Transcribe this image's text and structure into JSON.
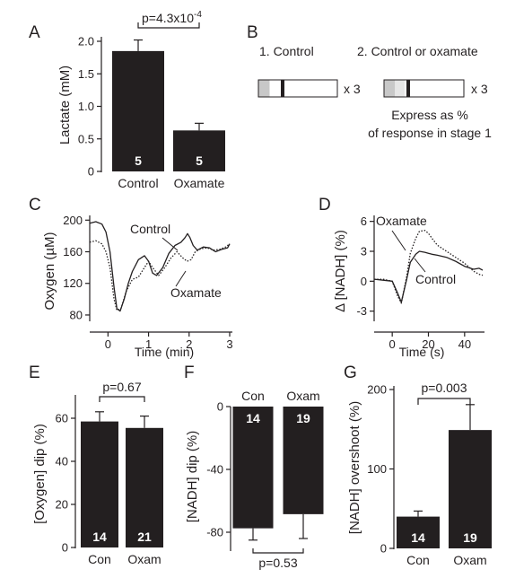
{
  "chart_data": [
    {
      "panel": "A",
      "type": "bar",
      "ylabel": "Lactate (mM)",
      "ylim": [
        0,
        2.2
      ],
      "yticks": [
        "0",
        "0.5",
        "1.0",
        "1.5",
        "2.0"
      ],
      "categories": [
        "Control",
        "Oxamate"
      ],
      "values": [
        1.85,
        0.63
      ],
      "errors": [
        0.17,
        0.11
      ],
      "n": [
        "5",
        "5"
      ],
      "sig_label": "p=4.3x10",
      "sig_exponent": "-4"
    },
    {
      "panel": "B",
      "type": "diagram",
      "stage1": "1. Control",
      "stage2": "2. Control or oxamate",
      "repeat1": "x 3",
      "repeat2": "x 3",
      "caption_line1": "Express as %",
      "caption_line2": "of response in stage 1"
    },
    {
      "panel": "C",
      "type": "line",
      "ylabel": "Oxygen (µM)",
      "xlabel": "Time (min)",
      "xlim": [
        -0.45,
        3.0
      ],
      "ylim": [
        72,
        206
      ],
      "xticks": [
        "0",
        "1",
        "2",
        "3"
      ],
      "yticks": [
        "80",
        "120",
        "160",
        "200"
      ],
      "series": [
        {
          "name": "Control",
          "style": "solid",
          "x": [
            -0.45,
            -0.3,
            -0.15,
            -0.05,
            0.05,
            0.15,
            0.22,
            0.3,
            0.4,
            0.5,
            0.6,
            0.75,
            0.9,
            1.0,
            1.1,
            1.2,
            1.35,
            1.5,
            1.65,
            1.8,
            1.9,
            1.96,
            2.02,
            2.1,
            2.2,
            2.35,
            2.5,
            2.65,
            2.8,
            2.95,
            3.0
          ],
          "y": [
            196,
            198,
            195,
            185,
            160,
            115,
            88,
            85,
            100,
            120,
            135,
            150,
            155,
            148,
            133,
            130,
            140,
            158,
            168,
            172,
            178,
            183,
            178,
            168,
            162,
            166,
            165,
            160,
            163,
            165,
            170
          ]
        },
        {
          "name": "Oxamate",
          "style": "dotted",
          "x": [
            -0.45,
            -0.3,
            -0.15,
            -0.05,
            0.05,
            0.15,
            0.22,
            0.32,
            0.45,
            0.6,
            0.75,
            0.9,
            1.0,
            1.1,
            1.25,
            1.4,
            1.55,
            1.7,
            1.85,
            1.95,
            2.05,
            2.15,
            2.3,
            2.45,
            2.6,
            2.75,
            2.9,
            3.0
          ],
          "y": [
            172,
            174,
            170,
            160,
            140,
            100,
            86,
            88,
            110,
            125,
            128,
            140,
            148,
            140,
            130,
            140,
            152,
            160,
            152,
            148,
            150,
            160,
            164,
            165,
            162,
            163,
            166,
            170
          ]
        }
      ],
      "annotations": [
        "Control",
        "Oxamate"
      ]
    },
    {
      "panel": "D",
      "type": "line",
      "ylabel": "Δ [NADH] (%)",
      "xlabel": "Time (s)",
      "xlim": [
        -10,
        50
      ],
      "ylim": [
        -4.2,
        6.6
      ],
      "xticks": [
        "0",
        "20",
        "40"
      ],
      "yticks": [
        "6",
        "3",
        "0",
        "-3"
      ],
      "series": [
        {
          "name": "Oxamate",
          "style": "dotted",
          "x": [
            -10,
            -5,
            0,
            3,
            5,
            8,
            10,
            13,
            15,
            18,
            20,
            22,
            25,
            30,
            35,
            40,
            45,
            48,
            50
          ],
          "y": [
            0.2,
            0.2,
            0,
            -1.5,
            -2.2,
            0.5,
            2.8,
            4.3,
            5.0,
            5.1,
            4.8,
            4.3,
            3.6,
            3.0,
            2.4,
            1.8,
            1.0,
            0.7,
            0.6
          ]
        },
        {
          "name": "Control",
          "style": "solid",
          "x": [
            -10,
            -5,
            0,
            3,
            5,
            8,
            10,
            13,
            15,
            18,
            20,
            22,
            25,
            30,
            35,
            40,
            45,
            48,
            50
          ],
          "y": [
            0.2,
            0.1,
            0,
            -1.2,
            -2.1,
            0.2,
            1.9,
            2.7,
            3.0,
            2.9,
            2.8,
            2.7,
            2.6,
            2.4,
            2.0,
            1.5,
            1.2,
            1.3,
            1.1
          ]
        }
      ],
      "annotations": [
        "Oxamate",
        "Control"
      ]
    },
    {
      "panel": "E",
      "type": "bar",
      "ylabel": "[Oxygen] dip (%)",
      "ylim": [
        0,
        68
      ],
      "yticks": [
        "0",
        "20",
        "40",
        "60"
      ],
      "categories": [
        "Con",
        "Oxam"
      ],
      "values": [
        58.5,
        55.5
      ],
      "errors": [
        4.5,
        5.5
      ],
      "n": [
        "14",
        "21"
      ],
      "sig_label": "p=0.67"
    },
    {
      "panel": "F",
      "type": "bar",
      "ylabel": "[NADH] dip (%)",
      "ylim": [
        -91,
        0
      ],
      "yticks": [
        "0",
        "-40",
        "-80"
      ],
      "categories": [
        "Con",
        "Oxam"
      ],
      "values": [
        -77.5,
        -68.5
      ],
      "errors": [
        7.5,
        15.5
      ],
      "n": [
        "14",
        "19"
      ],
      "sig_label": "p=0.53"
    },
    {
      "panel": "G",
      "type": "bar",
      "ylabel": "[NADH] overshoot (%)",
      "ylim": [
        0,
        200
      ],
      "yticks": [
        "0",
        "100",
        "200"
      ],
      "categories": [
        "Con",
        "Oxam"
      ],
      "values": [
        40,
        149
      ],
      "errors": [
        7,
        32
      ],
      "n": [
        "14",
        "19"
      ],
      "sig_label": "p=0.003"
    }
  ]
}
